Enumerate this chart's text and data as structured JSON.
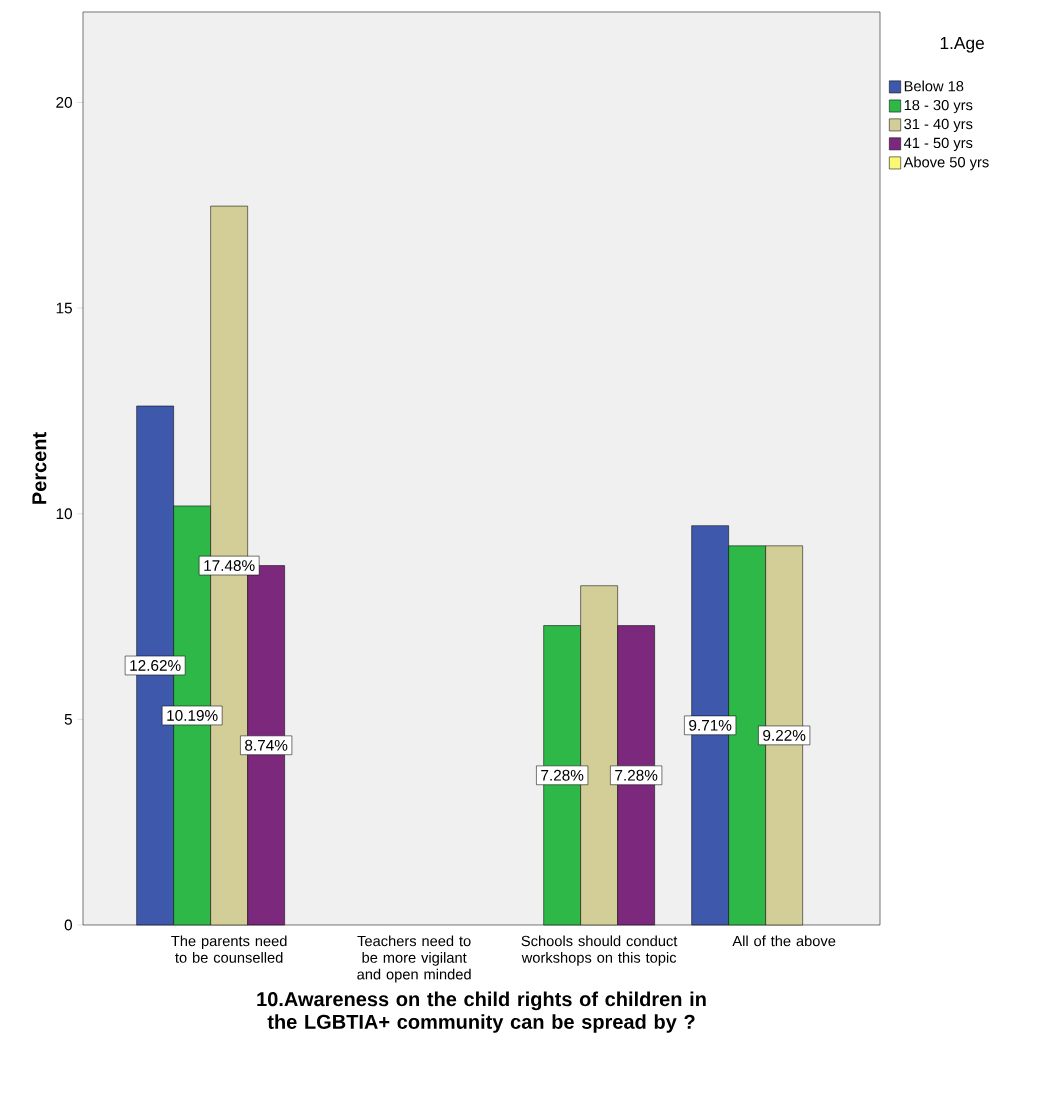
{
  "chart_data": {
    "type": "bar",
    "xlabel": "10.Awareness on the child rights of children in the LGBTIA+ community can be spread by ?",
    "ylabel": "Percent",
    "legend_title": "1.Age",
    "categories": [
      "The parents need to be counselled",
      "Teachers need to be more vigilant and open minded",
      "Schools should conduct workshops on this topic",
      "All of the above"
    ],
    "series": [
      {
        "name": "Below 18",
        "color": "#3e58ac",
        "values": [
          12.62,
          null,
          null,
          9.71
        ],
        "value_labels": [
          "12.62%",
          null,
          null,
          "9.71%"
        ]
      },
      {
        "name": "18 - 30 yrs",
        "color": "#2eb848",
        "values": [
          10.19,
          null,
          7.28,
          9.22
        ],
        "value_labels": [
          "10.19%",
          null,
          "7.28%",
          null
        ]
      },
      {
        "name": "31 - 40 yrs",
        "color": "#d3ce97",
        "values": [
          17.48,
          null,
          8.25,
          9.22
        ],
        "value_labels": [
          "17.48%",
          null,
          null,
          "9.22%"
        ]
      },
      {
        "name": "41 - 50 yrs",
        "color": "#7c287d",
        "values": [
          8.74,
          null,
          7.28,
          null
        ],
        "value_labels": [
          "8.74%",
          null,
          "7.28%",
          null
        ]
      },
      {
        "name": "Above 50 yrs",
        "color": "#fbf873",
        "values": [
          null,
          null,
          null,
          null
        ]
      }
    ],
    "ylim": [
      0,
      22.2
    ],
    "yticks": [
      0,
      5,
      10,
      15,
      20
    ],
    "legend": "top right"
  }
}
